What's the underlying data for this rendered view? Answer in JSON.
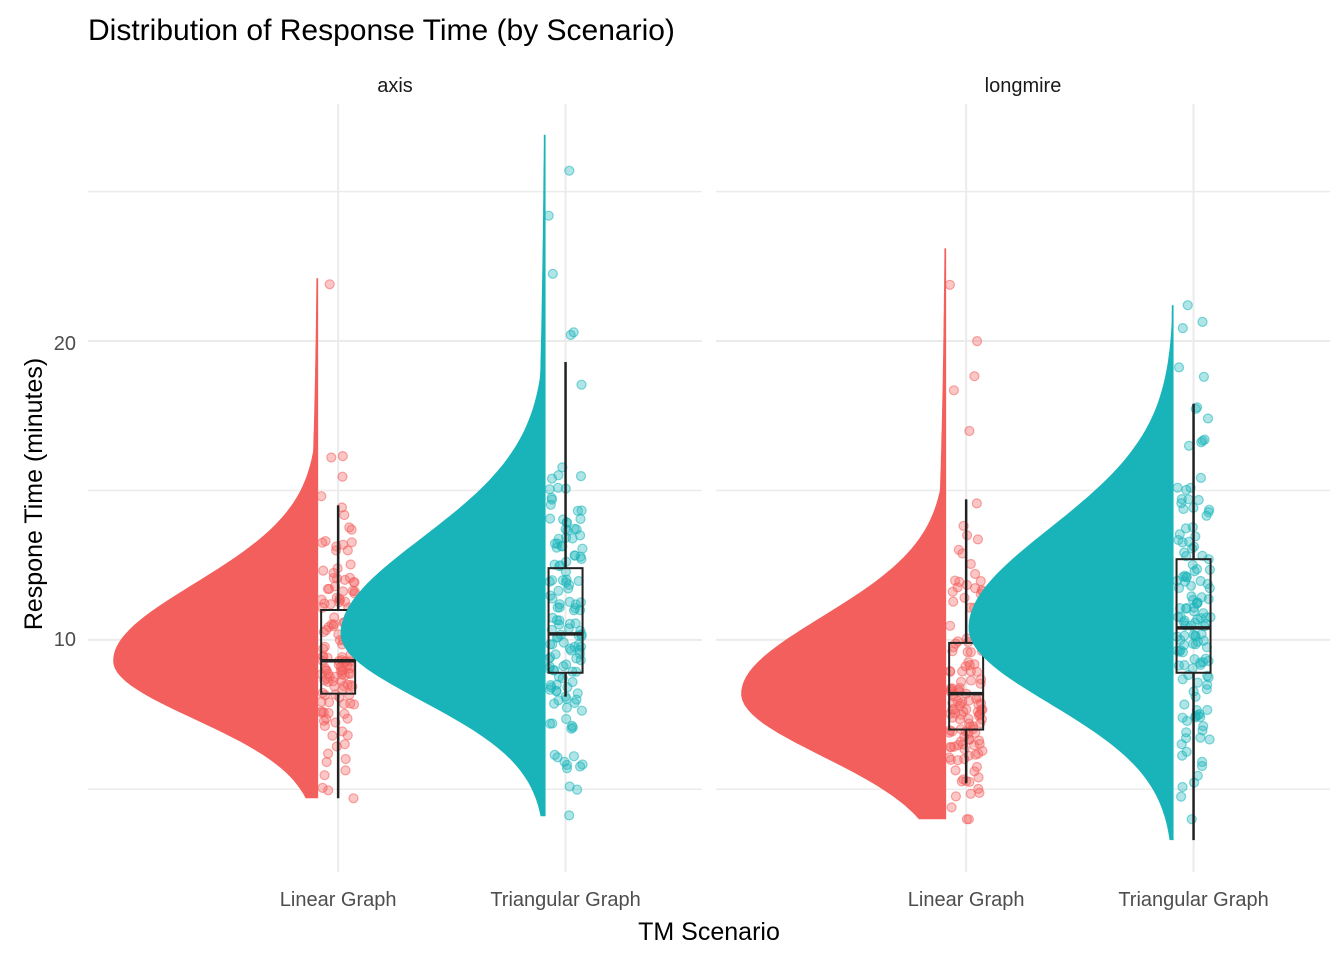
{
  "chart_data": {
    "type": "raincloud",
    "title": "Distribution of Response Time (by Scenario)",
    "xlabel": "TM Scenario",
    "ylabel": "Respone Time (minutes)",
    "ylim": [
      2.3,
      28.4
    ],
    "y_ticks": [
      10,
      20
    ],
    "grid": true,
    "categories": [
      "Linear Graph",
      "Triangular Graph"
    ],
    "colors": {
      "Linear Graph": "#f35f5c",
      "Triangular Graph": "#19b4ba"
    },
    "facets": [
      {
        "name": "axis",
        "groups": [
          {
            "category": "Linear Graph",
            "min": 4.7,
            "q1": 8.2,
            "median": 9.3,
            "q3": 11.0,
            "max": 14.5,
            "density_min": 4.7,
            "density_max": 22.1
          },
          {
            "category": "Triangular Graph",
            "min": 8.1,
            "q1": 8.9,
            "median": 10.2,
            "q3": 12.4,
            "max": 19.3,
            "density_min": 4.1,
            "density_max": 26.9
          }
        ]
      },
      {
        "name": "longmire",
        "groups": [
          {
            "category": "Linear Graph",
            "min": 5.2,
            "q1": 7.0,
            "median": 8.2,
            "q3": 9.9,
            "max": 14.7,
            "density_min": 4.0,
            "density_max": 23.1
          },
          {
            "category": "Triangular Graph",
            "min": 3.3,
            "q1": 8.9,
            "median": 10.4,
            "q3": 12.7,
            "max": 17.9,
            "density_min": 3.3,
            "density_max": 21.2
          }
        ]
      }
    ]
  }
}
